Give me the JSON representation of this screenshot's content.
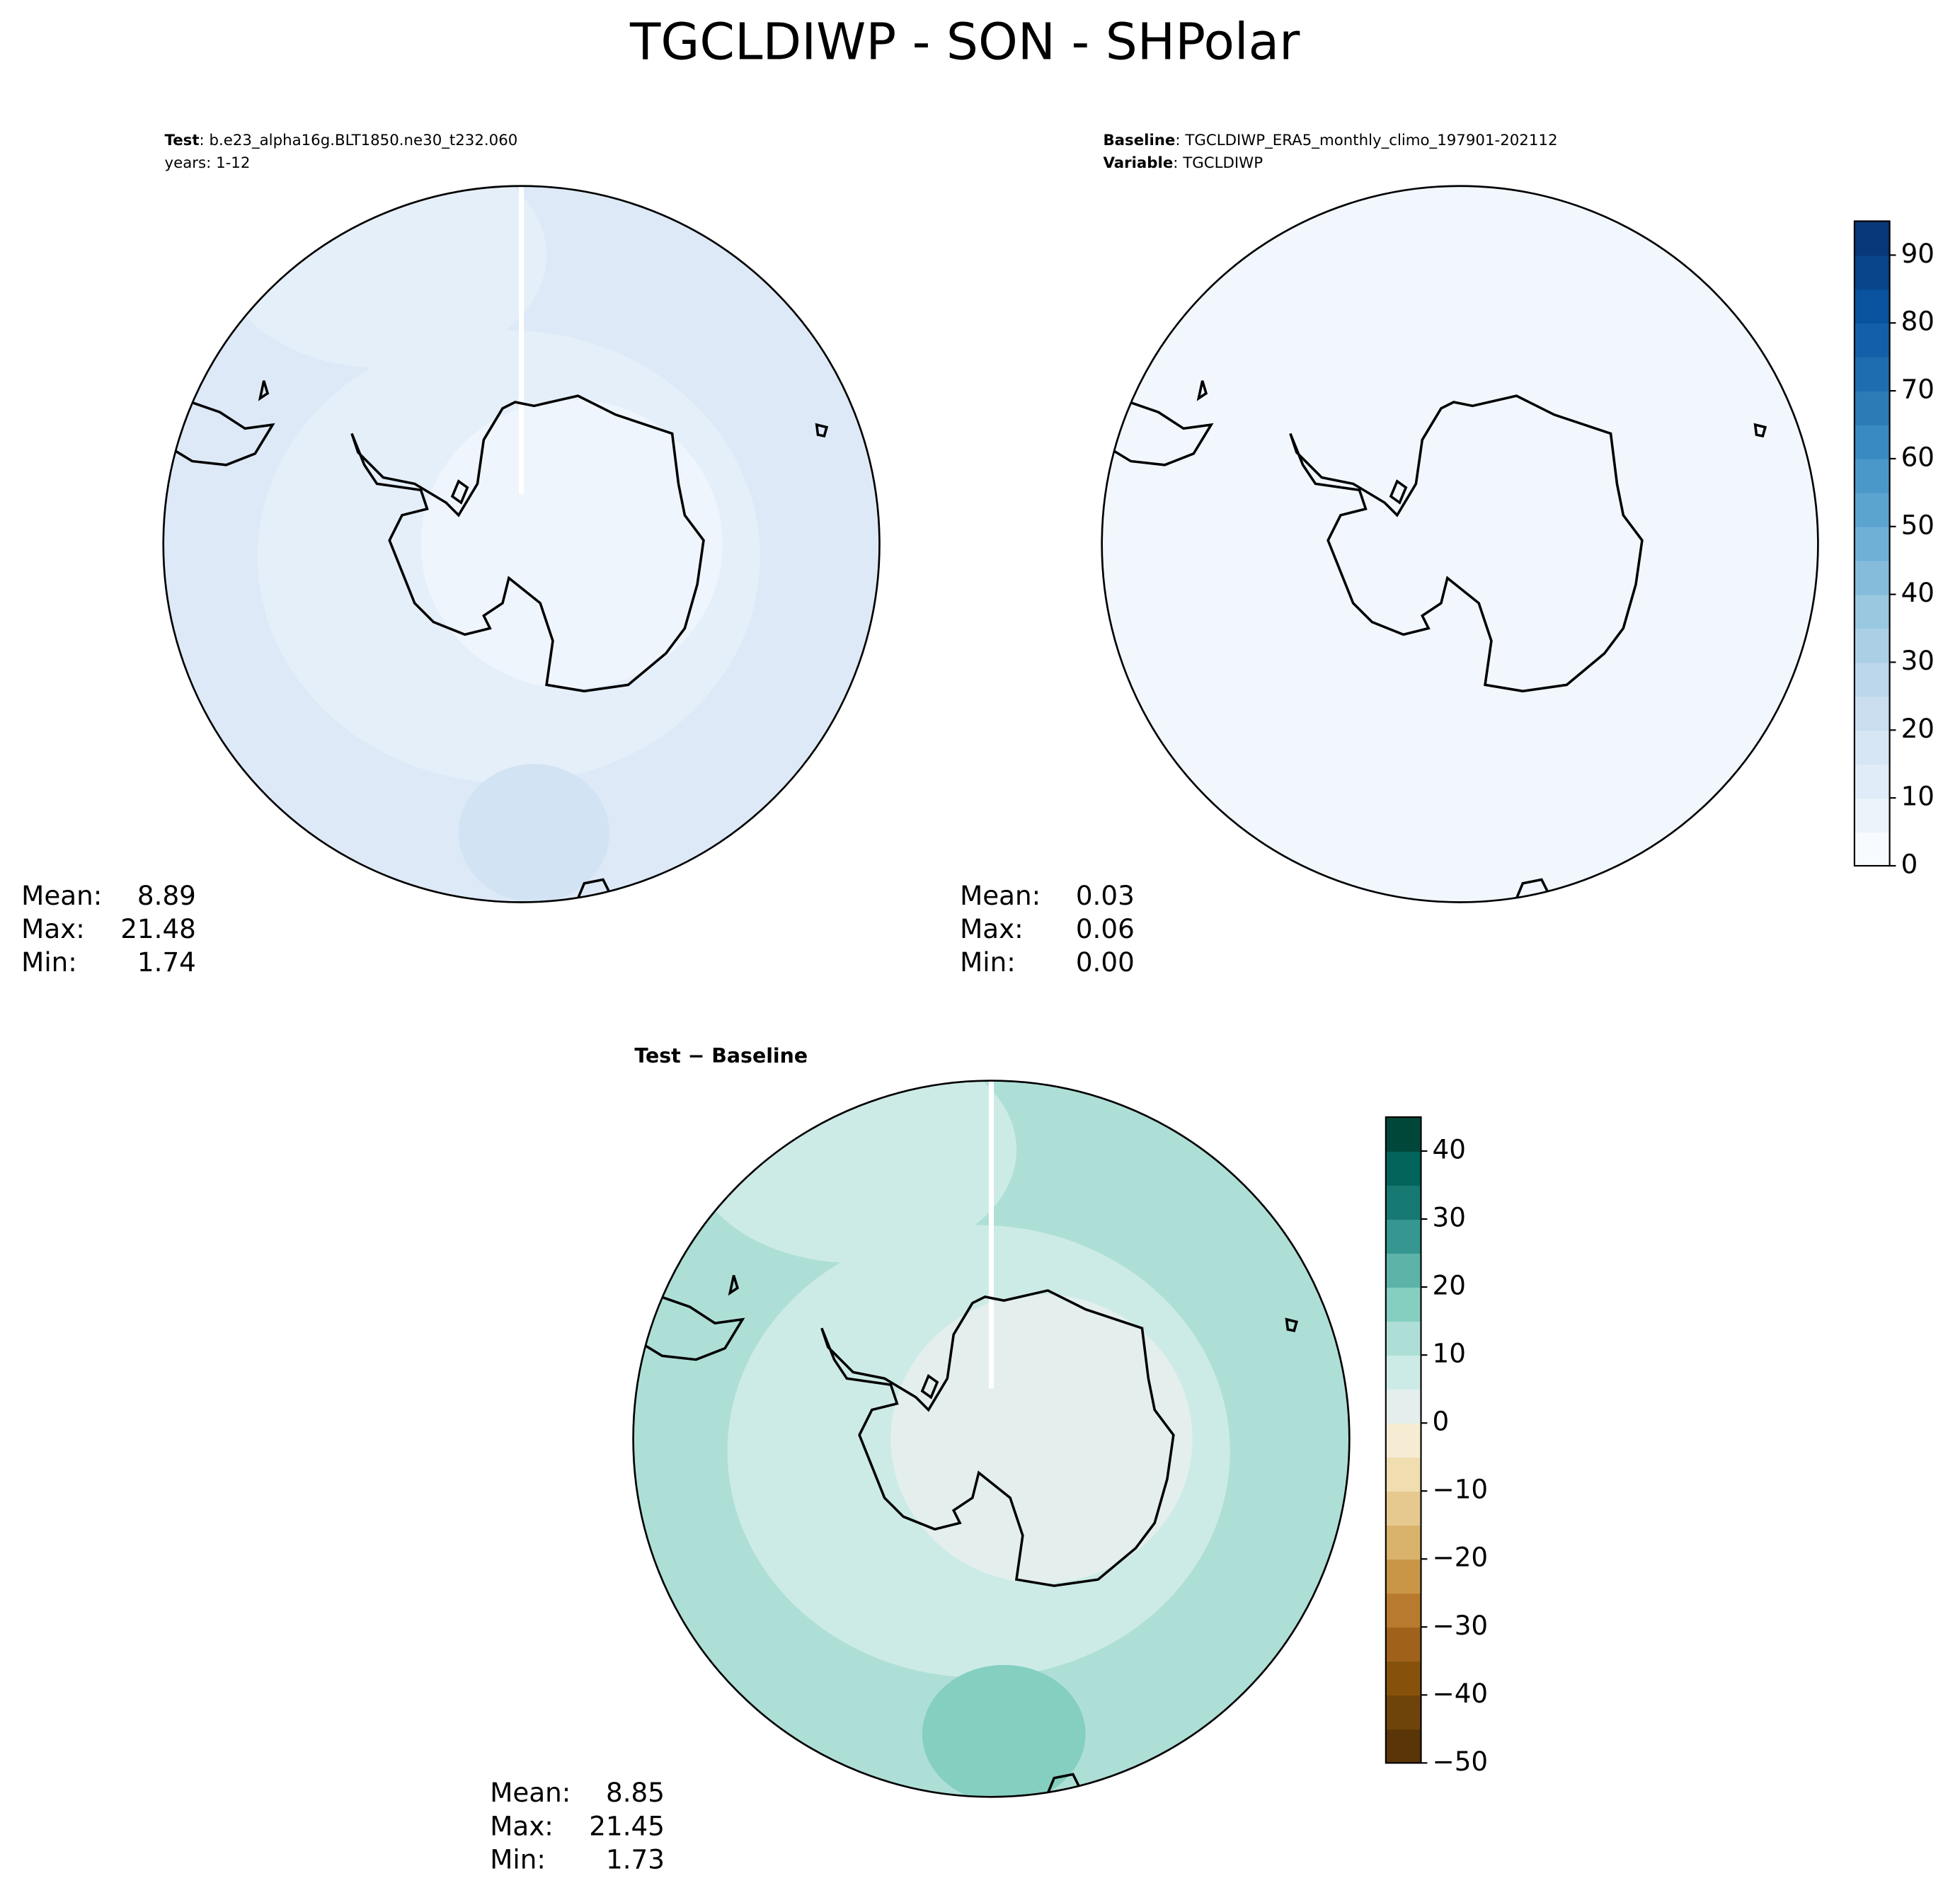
{
  "title": "TGCLDIWP - SON - SHPolar",
  "panels": [
    {
      "header": [
        {
          "key": "Test",
          "text": ": b.e23_alpha16g.BLT1850.ne30_t232.060"
        },
        {
          "text": "years: 1-12"
        }
      ],
      "stats": [
        {
          "label": "Mean:",
          "value": "8.89"
        },
        {
          "label": "Max:",
          "value": "21.48"
        },
        {
          "label": "Min:",
          "value": "1.74"
        }
      ]
    },
    {
      "header": [
        {
          "key": "Baseline",
          "text": ": TGCLDIWP_ERA5_monthly_climo_197901-202112"
        },
        {
          "key": "Variable",
          "text": ": TGCLDIWP"
        }
      ],
      "stats": [
        {
          "label": "Mean:",
          "value": "0.03"
        },
        {
          "label": "Max:",
          "value": "0.06"
        },
        {
          "label": "Min:",
          "value": "0.00"
        }
      ],
      "colorbar": {
        "lim": [
          0,
          95
        ],
        "ticks": [
          0,
          10,
          20,
          30,
          40,
          50,
          60,
          70,
          80,
          90
        ],
        "colors": [
          "#f7fbff",
          "#ebf3fb",
          "#e0ecf8",
          "#d6e6f4",
          "#cadef0",
          "#bcd7eb",
          "#abd0e6",
          "#9ac8e0",
          "#85bcdc",
          "#6fb0d7",
          "#5ca4d0",
          "#4a98c9",
          "#3a8ac2",
          "#2c7bb6",
          "#1f6db1",
          "#1460a8",
          "#09529d",
          "#08458a",
          "#083877"
        ]
      }
    },
    {
      "header": [
        {
          "key": "Test − Baseline"
        }
      ],
      "stats": [
        {
          "label": "Mean:",
          "value": "8.85"
        },
        {
          "label": "Max:",
          "value": "21.45"
        },
        {
          "label": "Min:",
          "value": "1.73"
        }
      ],
      "colorbar": {
        "lim": [
          -50,
          45
        ],
        "ticks": [
          {
            "value": -50,
            "label": "−50"
          },
          {
            "value": -40,
            "label": "−40"
          },
          {
            "value": -30,
            "label": "−30"
          },
          {
            "value": -20,
            "label": "−20"
          },
          {
            "value": -10,
            "label": "−10"
          },
          0,
          10,
          20,
          30,
          40
        ],
        "colors": [
          "#5a3508",
          "#6f440a",
          "#86520b",
          "#a0621a",
          "#b87a2e",
          "#c99647",
          "#d9b26c",
          "#e6c98e",
          "#f0ddb0",
          "#f5ecd3",
          "#e4efed",
          "#cdebe6",
          "#aedfd7",
          "#85cfc1",
          "#5db3a8",
          "#35978f",
          "#167972",
          "#02645a",
          "#00473a"
        ]
      }
    }
  ]
}
